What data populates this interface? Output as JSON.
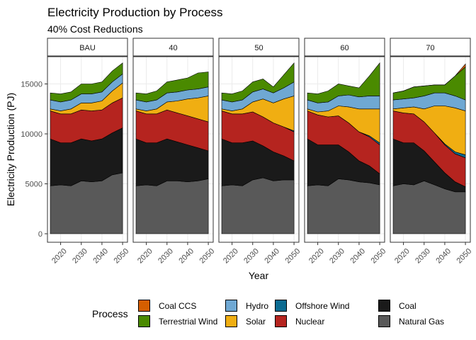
{
  "title": "Electricity Production by Process",
  "subtitle": "40% Cost Reductions",
  "chart_data": {
    "type": "area",
    "stacked": true,
    "xlabel": "Year",
    "ylabel": "Electricity Production (PJ)",
    "ylim": [
      0,
      17500
    ],
    "yticks": [
      0,
      5000,
      10000,
      15000
    ],
    "xticks": [
      2020,
      2030,
      2040,
      2050
    ],
    "xlim": [
      2015,
      2051
    ],
    "grid": true,
    "legend": {
      "title": "Process",
      "position": "bottom"
    },
    "x": [
      2015,
      2020,
      2025,
      2030,
      2035,
      2040,
      2045,
      2050
    ],
    "stack_order": [
      "Natural Gas",
      "Coal",
      "Nuclear",
      "Offshore Wind",
      "Solar",
      "Hydro",
      "Terrestrial Wind",
      "Coal CCS"
    ],
    "colors": {
      "Coal CCS": "#D55E00",
      "Terrestrial Wind": "#4A8A00",
      "Hydro": "#6FA8D3",
      "Solar": "#F0AE12",
      "Offshore Wind": "#0B6B91",
      "Nuclear": "#B5241F",
      "Coal": "#1A1A1A",
      "Natural Gas": "#595959"
    },
    "legend_items": [
      {
        "label": "Coal CCS",
        "key": "Coal CCS"
      },
      {
        "label": "Terrestrial Wind",
        "key": "Terrestrial Wind"
      },
      {
        "label": "Hydro",
        "key": "Hydro"
      },
      {
        "label": "Solar",
        "key": "Solar"
      },
      {
        "label": "Offshore Wind",
        "key": "Offshore Wind"
      },
      {
        "label": "Nuclear",
        "key": "Nuclear"
      },
      {
        "label": "Coal",
        "key": "Coal"
      },
      {
        "label": "Natural Gas",
        "key": "Natural Gas"
      }
    ],
    "panels": [
      {
        "label": "BAU",
        "series": [
          {
            "name": "Natural Gas",
            "values": [
              4800,
              4900,
              4800,
              5300,
              5200,
              5300,
              5900,
              6100
            ]
          },
          {
            "name": "Coal",
            "values": [
              4700,
              4200,
              4300,
              4200,
              4100,
              4200,
              4200,
              4500
            ]
          },
          {
            "name": "Nuclear",
            "values": [
              2800,
              2900,
              2900,
              2900,
              3000,
              2900,
              3000,
              3000
            ]
          },
          {
            "name": "Offshore Wind",
            "values": [
              0,
              0,
              0,
              0,
              0,
              0,
              0,
              0
            ]
          },
          {
            "name": "Solar",
            "values": [
              200,
              300,
              500,
              700,
              800,
              900,
              1200,
              1500
            ]
          },
          {
            "name": "Hydro",
            "values": [
              900,
              900,
              900,
              900,
              900,
              900,
              900,
              900
            ]
          },
          {
            "name": "Terrestrial Wind",
            "values": [
              700,
              800,
              800,
              1000,
              1000,
              1000,
              1100,
              1100
            ]
          },
          {
            "name": "Coal CCS",
            "values": [
              0,
              0,
              0,
              0,
              0,
              0,
              0,
              0
            ]
          }
        ]
      },
      {
        "label": "40",
        "series": [
          {
            "name": "Natural Gas",
            "values": [
              4800,
              4900,
              4800,
              5300,
              5300,
              5200,
              5300,
              5500
            ]
          },
          {
            "name": "Coal",
            "values": [
              4700,
              4200,
              4300,
              4200,
              3900,
              3700,
              3300,
              2800
            ]
          },
          {
            "name": "Nuclear",
            "values": [
              2800,
              2900,
              2900,
              2900,
              2900,
              2900,
              2900,
              2900
            ]
          },
          {
            "name": "Offshore Wind",
            "values": [
              0,
              0,
              0,
              0,
              0,
              0,
              0,
              0
            ]
          },
          {
            "name": "Solar",
            "values": [
              200,
              300,
              500,
              800,
              1200,
              1700,
              2100,
              2600
            ]
          },
          {
            "name": "Hydro",
            "values": [
              900,
              900,
              900,
              900,
              900,
              900,
              900,
              900
            ]
          },
          {
            "name": "Terrestrial Wind",
            "values": [
              700,
              800,
              900,
              1100,
              1200,
              1200,
              1600,
              1500
            ]
          },
          {
            "name": "Coal CCS",
            "values": [
              0,
              0,
              0,
              0,
              0,
              0,
              0,
              0
            ]
          }
        ]
      },
      {
        "label": "50",
        "series": [
          {
            "name": "Natural Gas",
            "values": [
              4800,
              4900,
              4800,
              5400,
              5600,
              5300,
              5400,
              5400
            ]
          },
          {
            "name": "Coal",
            "values": [
              4700,
              4200,
              4300,
              3900,
              3200,
              2900,
              2400,
              1900
            ]
          },
          {
            "name": "Nuclear",
            "values": [
              2800,
              2900,
              2900,
              2900,
              2900,
              2900,
              2900,
              2900
            ]
          },
          {
            "name": "Offshore Wind",
            "values": [
              0,
              0,
              0,
              0,
              0,
              0,
              0,
              100
            ]
          },
          {
            "name": "Solar",
            "values": [
              200,
              300,
              500,
              1000,
              1800,
              2000,
              2800,
              3500
            ]
          },
          {
            "name": "Hydro",
            "values": [
              900,
              900,
              900,
              1000,
              1000,
              1000,
              1100,
              1400
            ]
          },
          {
            "name": "Terrestrial Wind",
            "values": [
              700,
              800,
              900,
              1000,
              1000,
              600,
              1300,
              1900
            ]
          },
          {
            "name": "Coal CCS",
            "values": [
              0,
              0,
              0,
              0,
              0,
              0,
              0,
              0
            ]
          }
        ]
      },
      {
        "label": "60",
        "series": [
          {
            "name": "Natural Gas",
            "values": [
              4800,
              4900,
              4800,
              5500,
              5400,
              5200,
              5100,
              4900
            ]
          },
          {
            "name": "Coal",
            "values": [
              4700,
              4000,
              4100,
              3400,
              2800,
              2100,
              1700,
              1100
            ]
          },
          {
            "name": "Nuclear",
            "values": [
              2800,
              3000,
              2800,
              2900,
              2900,
              2900,
              2900,
              2900
            ]
          },
          {
            "name": "Offshore Wind",
            "values": [
              0,
              0,
              0,
              0,
              0,
              0,
              100,
              200
            ]
          },
          {
            "name": "Solar",
            "values": [
              200,
              300,
              600,
              1000,
              1600,
              2300,
              2700,
              3400
            ]
          },
          {
            "name": "Hydro",
            "values": [
              900,
              900,
              900,
              1000,
              1200,
              1200,
              1300,
              1300
            ]
          },
          {
            "name": "Terrestrial Wind",
            "values": [
              700,
              900,
              1100,
              1200,
              900,
              900,
              2000,
              3300
            ]
          },
          {
            "name": "Coal CCS",
            "values": [
              0,
              0,
              0,
              0,
              0,
              0,
              0,
              0
            ]
          }
        ]
      },
      {
        "label": "70",
        "series": [
          {
            "name": "Natural Gas",
            "values": [
              4800,
              5000,
              4900,
              5300,
              4900,
              4500,
              4200,
              4200
            ]
          },
          {
            "name": "Coal",
            "values": [
              4700,
              4100,
              4200,
              3000,
              2300,
              1600,
              1000,
              500
            ]
          },
          {
            "name": "Nuclear",
            "values": [
              2800,
              3000,
              2900,
              2900,
              2900,
              2800,
              2800,
              2900
            ]
          },
          {
            "name": "Offshore Wind",
            "values": [
              0,
              0,
              0,
              0,
              0,
              100,
              200,
              300
            ]
          },
          {
            "name": "Solar",
            "values": [
              200,
              500,
              700,
              1300,
              2700,
              3800,
              4400,
              4400
            ]
          },
          {
            "name": "Hydro",
            "values": [
              900,
              900,
              900,
              1300,
              1300,
              1300,
              1200,
              1100
            ]
          },
          {
            "name": "Terrestrial Wind",
            "values": [
              700,
              800,
              1100,
              1000,
              800,
              800,
              2000,
              3300
            ]
          },
          {
            "name": "Coal CCS",
            "values": [
              0,
              0,
              0,
              0,
              0,
              0,
              0,
              300
            ]
          }
        ]
      }
    ]
  }
}
